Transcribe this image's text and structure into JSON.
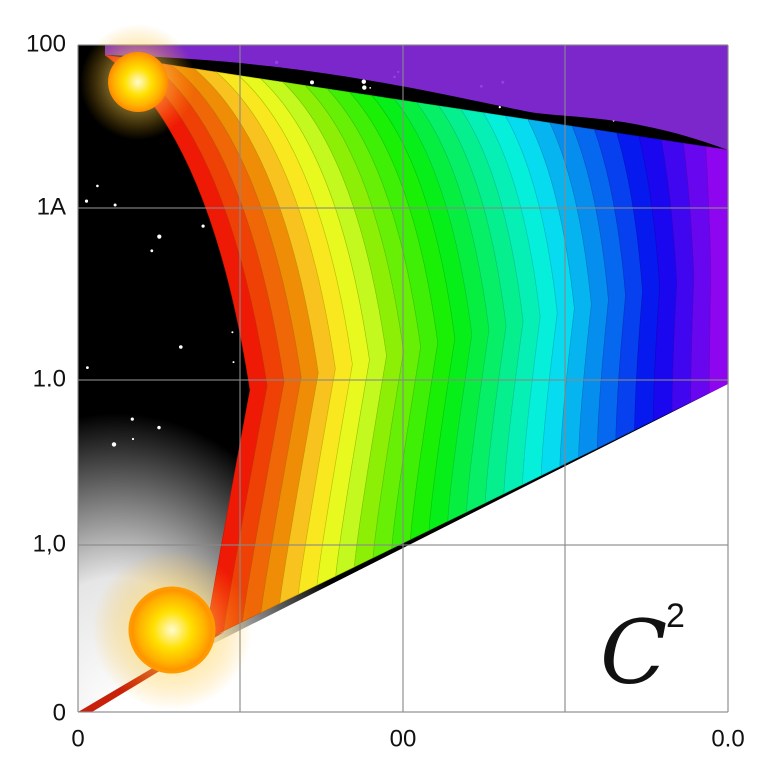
{
  "axes": {
    "y_labels": [
      "100",
      "1A",
      "1.0",
      "1,0",
      "0"
    ],
    "x_labels": [
      "0",
      "00",
      "0.0"
    ]
  },
  "annotation": {
    "base": "C",
    "exponent": "2"
  }
}
